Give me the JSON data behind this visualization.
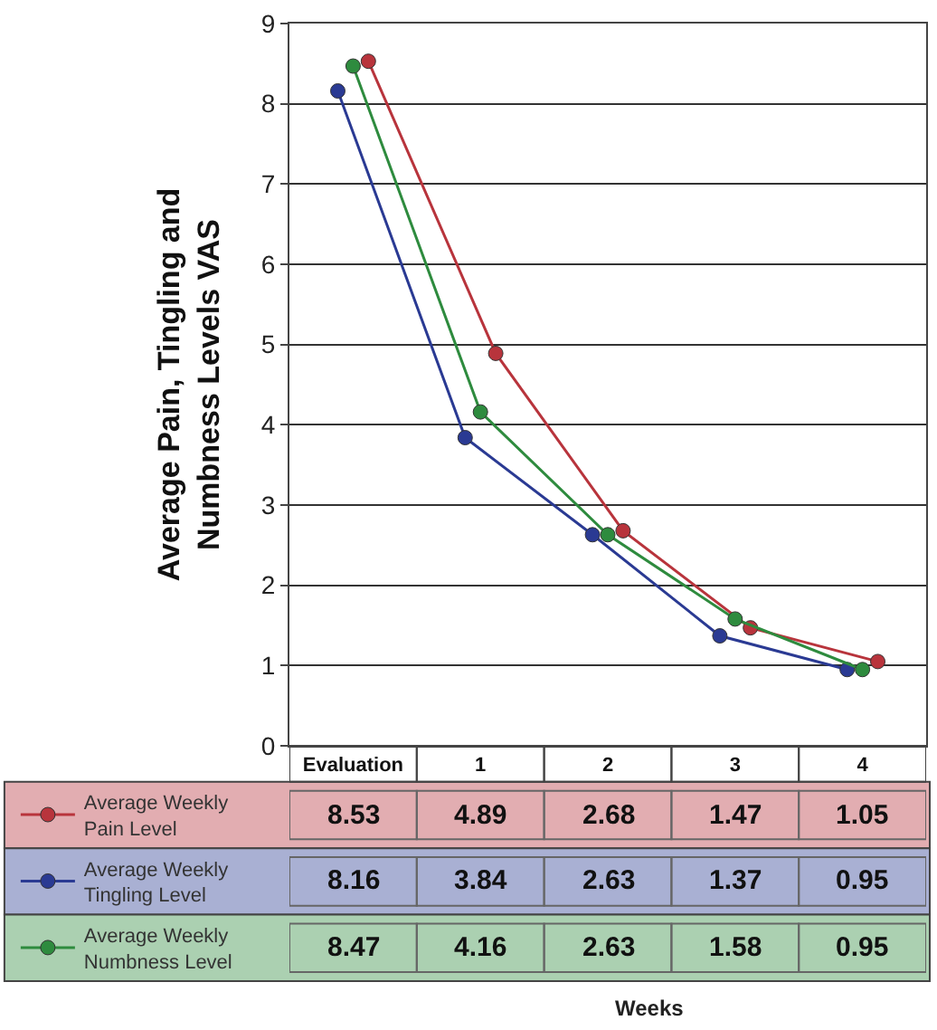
{
  "chart_data": {
    "type": "line",
    "ylabel": "Average Pain, Tingling and Numbness Levels VAS",
    "annotations": [
      "Weeks"
    ],
    "categories": [
      "Evaluation",
      "1",
      "2",
      "3",
      "4"
    ],
    "series": [
      {
        "name": "Average Weekly Pain Level",
        "color": "#b8343c",
        "values": [
          8.53,
          4.89,
          2.68,
          1.47,
          1.05
        ]
      },
      {
        "name": "Average Weekly Tingling Level",
        "color": "#2a3a93",
        "values": [
          8.16,
          3.84,
          2.63,
          1.37,
          0.95
        ]
      },
      {
        "name": "Average Weekly Numbness Level",
        "color": "#2e8b3e",
        "values": [
          8.47,
          4.16,
          2.63,
          1.58,
          0.95
        ]
      }
    ],
    "ylim": [
      0,
      9
    ],
    "yticks": [
      0,
      1,
      2,
      3,
      4,
      5,
      6,
      7,
      8,
      9
    ],
    "grid": "y",
    "marker": "circle",
    "line_style": "solid",
    "legend": "bottom left",
    "data_labels": true
  }
}
